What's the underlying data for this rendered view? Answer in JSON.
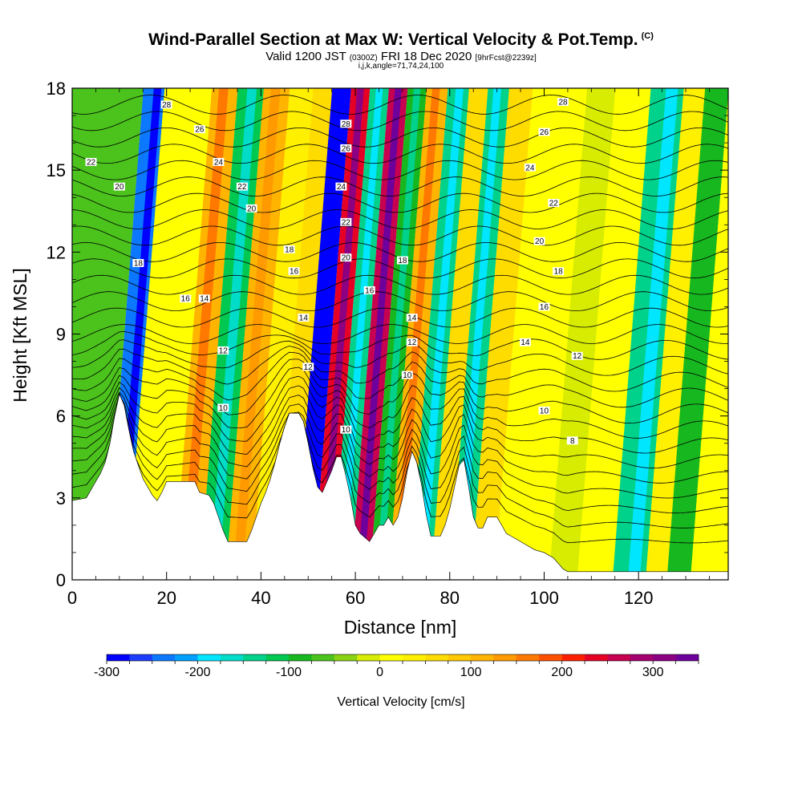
{
  "title": {
    "main": "Wind-Parallel Section at Max W: Vertical Velocity & Pot.Temp.",
    "main_suffix": "(C)",
    "valid_prefix": "Valid 1200 JST",
    "valid_utc": "(0300Z)",
    "valid_date": "FRI 18 Dec 2020",
    "forecast": "[9hrFcst@2239z]",
    "indices": "i,j,k,angle=71,74,24,100"
  },
  "chart_data": {
    "type": "heatmap",
    "xlabel": "Distance [nm]",
    "ylabel": "Height [Kft MSL]",
    "xlim": [
      0,
      139
    ],
    "ylim": [
      0,
      18
    ],
    "xticks": [
      0,
      20,
      40,
      60,
      80,
      100,
      120
    ],
    "yticks": [
      0,
      3,
      6,
      9,
      12,
      15,
      18
    ],
    "colorbar": {
      "label": "Vertical Velocity [cm/s]",
      "ticks": [
        -300,
        -200,
        -100,
        0,
        100,
        200,
        300
      ],
      "range": [
        -300,
        350
      ],
      "colors": [
        "#0000ff",
        "#1e3cff",
        "#0b78ff",
        "#00a0ff",
        "#00e6ff",
        "#00dcc8",
        "#00d28c",
        "#00c850",
        "#17b81f",
        "#4bc31c",
        "#8ad214",
        "#d7ec00",
        "#ffff00",
        "#fff000",
        "#ffdc00",
        "#ffc800",
        "#ffb400",
        "#ff9a00",
        "#ff7800",
        "#ff5000",
        "#ff1e00",
        "#e60026",
        "#c80050",
        "#a50070",
        "#8c0082",
        "#6e009b"
      ]
    },
    "columns_w": [
      {
        "x": 4,
        "w": -60
      },
      {
        "x": 10,
        "w": -230
      },
      {
        "x": 13,
        "w": 20
      },
      {
        "x": 19,
        "w": 0
      },
      {
        "x": 24,
        "w": 120
      },
      {
        "x": 30,
        "w": -120
      },
      {
        "x": 35,
        "w": 110
      },
      {
        "x": 41,
        "w": 30
      },
      {
        "x": 45,
        "w": 60
      },
      {
        "x": 49,
        "w": -300
      },
      {
        "x": 53,
        "w": 240
      },
      {
        "x": 57,
        "w": -130
      },
      {
        "x": 61,
        "w": 250
      },
      {
        "x": 65,
        "w": -100
      },
      {
        "x": 69,
        "w": 120
      },
      {
        "x": 74,
        "w": -130
      },
      {
        "x": 78,
        "w": 70
      },
      {
        "x": 82,
        "w": -130
      },
      {
        "x": 87,
        "w": 60
      },
      {
        "x": 92,
        "w": 10
      },
      {
        "x": 98,
        "w": 0
      },
      {
        "x": 104,
        "w": -20
      },
      {
        "x": 110,
        "w": 0
      },
      {
        "x": 119,
        "w": -130
      },
      {
        "x": 124,
        "w": 30
      },
      {
        "x": 128,
        "w": -80
      },
      {
        "x": 134,
        "w": 20
      }
    ],
    "terrain": [
      [
        0,
        2.9
      ],
      [
        3,
        3.0
      ],
      [
        4,
        3.3
      ],
      [
        5,
        3.6
      ],
      [
        6,
        3.9
      ],
      [
        7,
        4.3
      ],
      [
        8,
        5.0
      ],
      [
        9,
        6.0
      ],
      [
        10,
        6.8
      ],
      [
        11,
        6.4
      ],
      [
        12,
        5.5
      ],
      [
        13,
        4.7
      ],
      [
        14,
        4.2
      ],
      [
        15,
        3.7
      ],
      [
        16,
        3.4
      ],
      [
        17,
        3.1
      ],
      [
        18,
        2.9
      ],
      [
        19,
        3.2
      ],
      [
        20,
        3.6
      ],
      [
        26,
        3.6
      ],
      [
        27,
        3.2
      ],
      [
        29,
        3.1
      ],
      [
        30,
        2.8
      ],
      [
        31,
        2.3
      ],
      [
        32,
        1.8
      ],
      [
        33,
        1.4
      ],
      [
        37,
        1.4
      ],
      [
        38,
        1.8
      ],
      [
        39,
        2.3
      ],
      [
        40,
        2.8
      ],
      [
        41,
        3.2
      ],
      [
        42,
        3.7
      ],
      [
        43,
        4.3
      ],
      [
        44,
        5.0
      ],
      [
        45,
        5.6
      ],
      [
        46,
        6.1
      ],
      [
        48,
        6.1
      ],
      [
        49,
        5.8
      ],
      [
        50,
        5.0
      ],
      [
        51,
        4.1
      ],
      [
        52,
        3.4
      ],
      [
        53,
        3.2
      ],
      [
        54,
        3.6
      ],
      [
        55,
        4.0
      ],
      [
        56,
        4.5
      ],
      [
        57,
        4.5
      ],
      [
        58,
        3.8
      ],
      [
        59,
        3.0
      ],
      [
        60,
        2.0
      ],
      [
        61,
        1.7
      ],
      [
        63,
        1.4
      ],
      [
        64,
        1.7
      ],
      [
        65,
        2.0
      ],
      [
        66,
        2.0
      ],
      [
        67,
        2.3
      ],
      [
        68,
        2.0
      ],
      [
        69,
        2.3
      ],
      [
        70,
        3.0
      ],
      [
        71,
        4.0
      ],
      [
        72,
        4.7
      ],
      [
        73,
        4.3
      ],
      [
        74,
        3.5
      ],
      [
        75,
        2.4
      ],
      [
        76,
        1.6
      ],
      [
        78,
        1.6
      ],
      [
        79,
        2.0
      ],
      [
        80,
        2.6
      ],
      [
        81,
        3.4
      ],
      [
        82,
        4.2
      ],
      [
        83,
        4.4
      ],
      [
        84,
        3.4
      ],
      [
        85,
        2.3
      ],
      [
        86,
        1.9
      ],
      [
        87,
        1.9
      ],
      [
        88,
        2.3
      ],
      [
        90,
        2.3
      ],
      [
        91,
        2.0
      ],
      [
        92,
        1.7
      ],
      [
        94,
        1.5
      ],
      [
        96,
        1.3
      ],
      [
        98,
        1.1
      ],
      [
        100,
        1.0
      ],
      [
        102,
        0.8
      ],
      [
        103,
        0.6
      ],
      [
        104,
        0.4
      ],
      [
        105,
        0.3
      ],
      [
        139,
        0.3
      ]
    ],
    "theta_labels": [
      {
        "x": 20,
        "y": 17.4,
        "text": "28"
      },
      {
        "x": 27,
        "y": 16.5,
        "text": "26"
      },
      {
        "x": 4,
        "y": 15.3,
        "text": "22"
      },
      {
        "x": 31,
        "y": 15.3,
        "text": "24"
      },
      {
        "x": 36,
        "y": 14.4,
        "text": "22"
      },
      {
        "x": 10,
        "y": 14.4,
        "text": "20"
      },
      {
        "x": 38,
        "y": 13.6,
        "text": "20"
      },
      {
        "x": 14,
        "y": 11.6,
        "text": "18"
      },
      {
        "x": 24,
        "y": 10.3,
        "text": "16"
      },
      {
        "x": 28,
        "y": 10.3,
        "text": "14"
      },
      {
        "x": 32,
        "y": 8.4,
        "text": "12"
      },
      {
        "x": 32,
        "y": 6.3,
        "text": "10"
      },
      {
        "x": 46,
        "y": 12.1,
        "text": "18"
      },
      {
        "x": 47,
        "y": 11.3,
        "text": "16"
      },
      {
        "x": 49,
        "y": 9.6,
        "text": "14"
      },
      {
        "x": 50,
        "y": 7.8,
        "text": "12"
      },
      {
        "x": 58,
        "y": 16.7,
        "text": "28"
      },
      {
        "x": 58,
        "y": 15.8,
        "text": "26"
      },
      {
        "x": 57,
        "y": 14.4,
        "text": "24"
      },
      {
        "x": 58,
        "y": 13.1,
        "text": "22"
      },
      {
        "x": 58,
        "y": 11.8,
        "text": "20"
      },
      {
        "x": 63,
        "y": 10.6,
        "text": "16"
      },
      {
        "x": 70,
        "y": 11.7,
        "text": "18"
      },
      {
        "x": 72,
        "y": 9.6,
        "text": "14"
      },
      {
        "x": 72,
        "y": 8.7,
        "text": "12"
      },
      {
        "x": 71,
        "y": 7.5,
        "text": "10"
      },
      {
        "x": 58,
        "y": 5.5,
        "text": "10"
      },
      {
        "x": 104,
        "y": 17.5,
        "text": "28"
      },
      {
        "x": 100,
        "y": 16.4,
        "text": "26"
      },
      {
        "x": 97,
        "y": 15.1,
        "text": "24"
      },
      {
        "x": 102,
        "y": 13.8,
        "text": "22"
      },
      {
        "x": 99,
        "y": 12.4,
        "text": "20"
      },
      {
        "x": 103,
        "y": 11.3,
        "text": "18"
      },
      {
        "x": 100,
        "y": 10.0,
        "text": "16"
      },
      {
        "x": 96,
        "y": 8.7,
        "text": "14"
      },
      {
        "x": 107,
        "y": 8.2,
        "text": "12"
      },
      {
        "x": 100,
        "y": 6.2,
        "text": "10"
      },
      {
        "x": 106,
        "y": 5.1,
        "text": "8"
      }
    ]
  }
}
